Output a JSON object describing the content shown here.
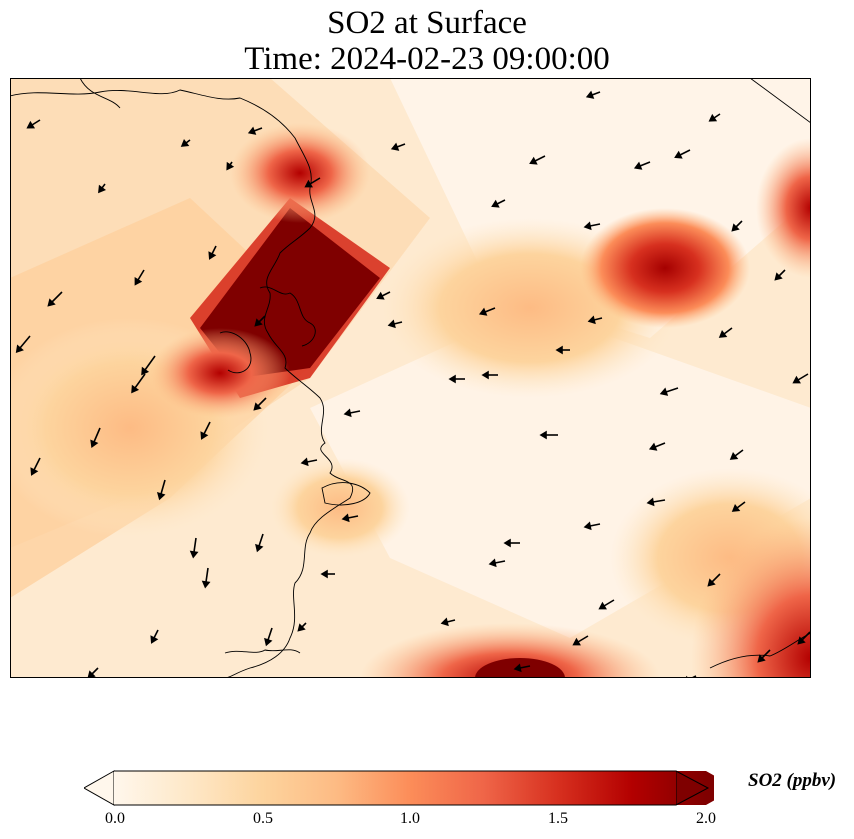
{
  "title": "SO2 at Surface",
  "subtitle": "Time: 2024-02-23 09:00:00",
  "colorbar": {
    "label": "SO2 (ppbv)",
    "min": 0.0,
    "max": 2.0,
    "extend": "both",
    "ticks": [
      "0.0",
      "0.5",
      "1.0",
      "1.5",
      "2.0"
    ],
    "colormap": "OrRd",
    "colors": [
      "#fff7ec",
      "#fee8c8",
      "#fdd49e",
      "#fdbb84",
      "#fc8d59",
      "#ef6548",
      "#d7301f",
      "#b30000",
      "#7f0000"
    ]
  },
  "map": {
    "features": [
      "SO2 concentration field",
      "wind vectors",
      "coastlines"
    ],
    "hotspots": [
      {
        "name": "west-central plume",
        "approx_value": 2.0
      },
      {
        "name": "north-east hotspot",
        "approx_value": 1.8
      },
      {
        "name": "east edge",
        "approx_value": 1.9
      },
      {
        "name": "south-east corner",
        "approx_value": 1.9
      },
      {
        "name": "south edge",
        "approx_value": 1.9
      }
    ]
  }
}
